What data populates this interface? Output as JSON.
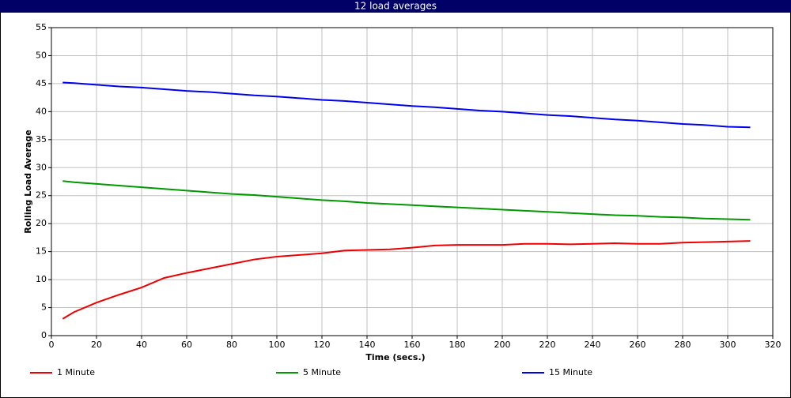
{
  "chart_data": {
    "type": "line",
    "title": "12 load averages",
    "x_label": "Time (secs.)",
    "y_label": "Rolling Load Average",
    "x": [
      5,
      10,
      20,
      30,
      40,
      50,
      60,
      70,
      80,
      90,
      100,
      110,
      120,
      130,
      140,
      150,
      160,
      170,
      180,
      190,
      200,
      210,
      220,
      230,
      240,
      250,
      260,
      270,
      280,
      290,
      300,
      310
    ],
    "series": [
      {
        "name": "1 Minute",
        "color": "#ee0000",
        "values": [
          3.0,
          4.2,
          5.9,
          7.3,
          8.6,
          10.3,
          11.2,
          12.0,
          12.8,
          13.6,
          14.1,
          14.4,
          14.7,
          15.2,
          15.3,
          15.4,
          15.7,
          16.1,
          16.2,
          16.2,
          16.2,
          16.4,
          16.4,
          16.3,
          16.4,
          16.5,
          16.4,
          16.4,
          16.6,
          16.7,
          16.8,
          16.9
        ]
      },
      {
        "name": "5 Minute",
        "color": "#009900",
        "values": [
          27.6,
          27.4,
          27.1,
          26.8,
          26.5,
          26.2,
          25.9,
          25.6,
          25.3,
          25.1,
          24.8,
          24.5,
          24.2,
          24.0,
          23.7,
          23.5,
          23.3,
          23.1,
          22.9,
          22.7,
          22.5,
          22.3,
          22.1,
          21.9,
          21.7,
          21.5,
          21.4,
          21.2,
          21.1,
          20.9,
          20.8,
          20.7
        ]
      },
      {
        "name": "15 Minute",
        "color": "#0000ee",
        "values": [
          45.2,
          45.1,
          44.8,
          44.5,
          44.3,
          44.0,
          43.7,
          43.5,
          43.2,
          42.9,
          42.7,
          42.4,
          42.1,
          41.9,
          41.6,
          41.3,
          41.0,
          40.8,
          40.5,
          40.2,
          40.0,
          39.7,
          39.4,
          39.2,
          38.9,
          38.6,
          38.4,
          38.1,
          37.8,
          37.6,
          37.3,
          37.2
        ]
      }
    ],
    "xlim": [
      0,
      320
    ],
    "xticks": [
      0,
      20,
      40,
      60,
      80,
      100,
      120,
      140,
      160,
      180,
      200,
      220,
      240,
      260,
      280,
      300,
      320
    ],
    "ylim": [
      0,
      55
    ],
    "yticks": [
      0,
      5,
      10,
      15,
      20,
      25,
      30,
      35,
      40,
      45,
      50,
      55
    ],
    "grid": true
  }
}
